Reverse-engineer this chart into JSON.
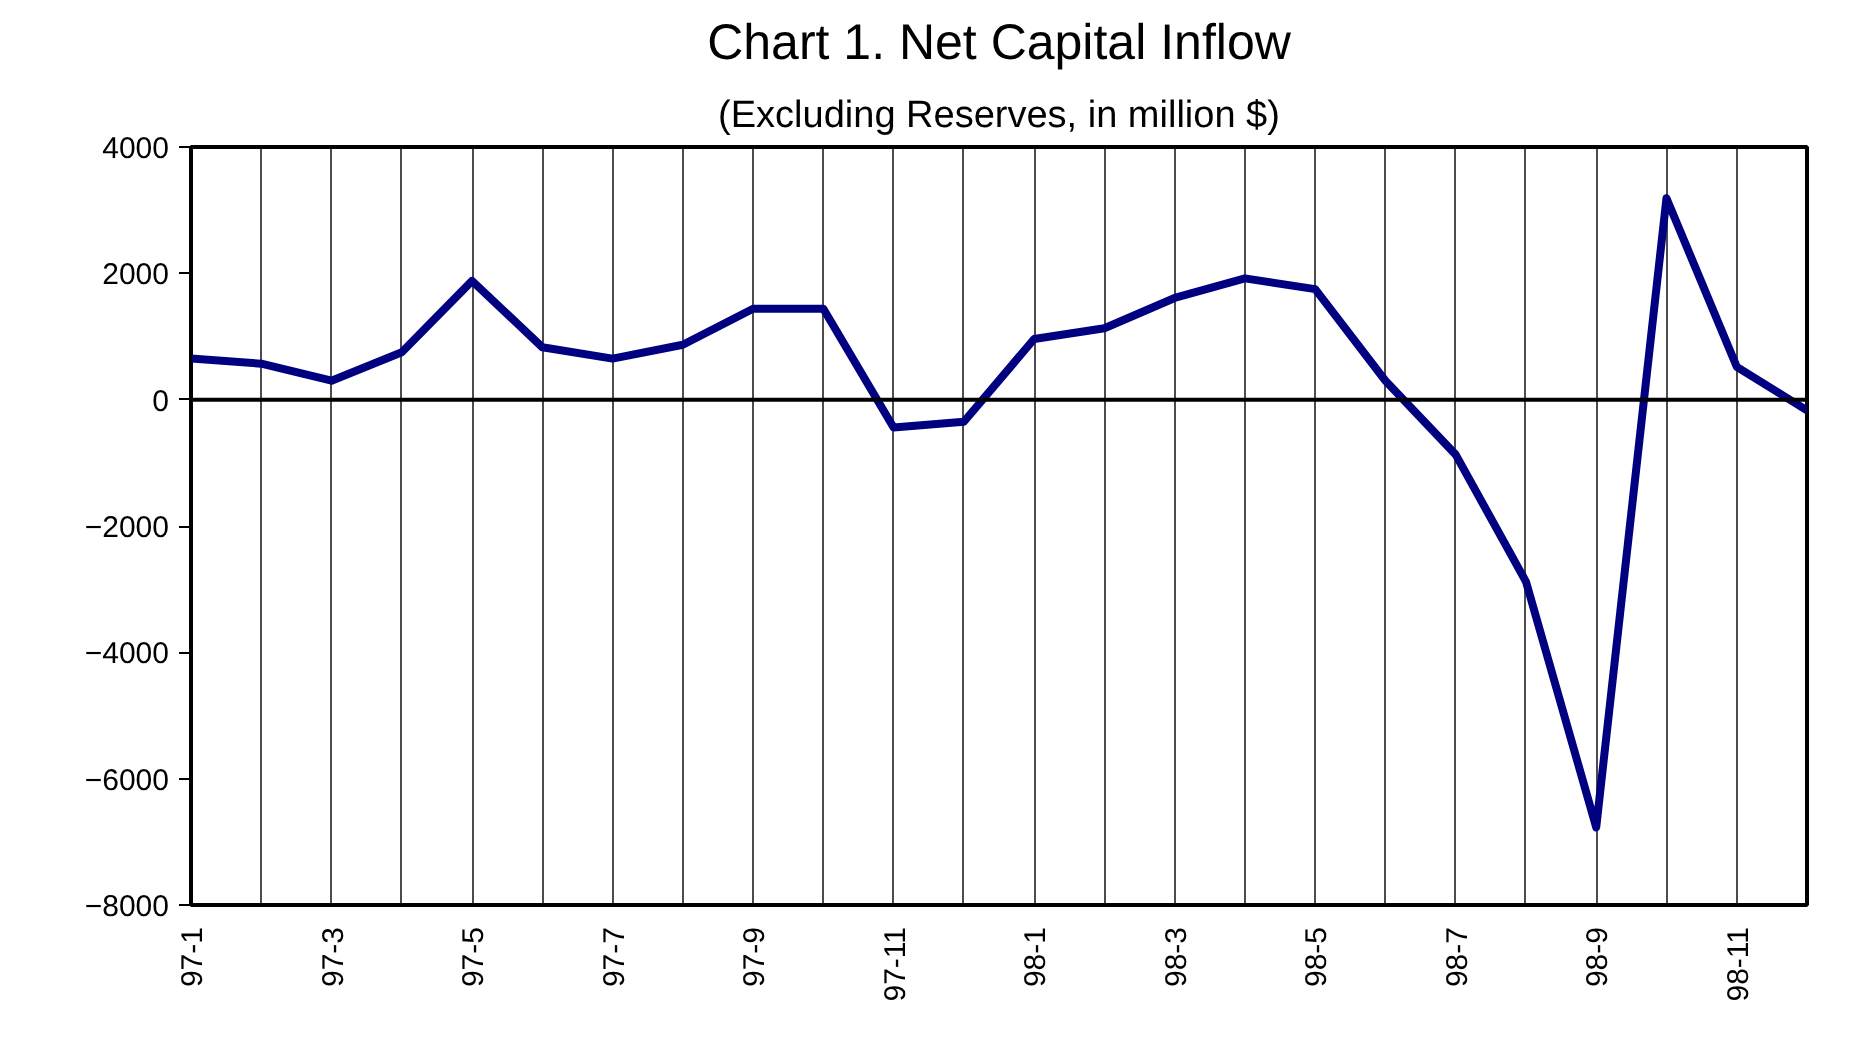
{
  "chart_data": {
    "type": "line",
    "title": "Chart 1. Net Capital Inflow",
    "subtitle": "(Excluding Reserves, in million $)",
    "categories": [
      "97-1",
      null,
      "97-3",
      null,
      "97-5",
      null,
      "97-7",
      null,
      "97-9",
      null,
      "97-11",
      null,
      "98-1",
      null,
      "98-3",
      null,
      "98-5",
      null,
      "98-7",
      null,
      "98-9",
      null,
      "98-11",
      null
    ],
    "series": [
      {
        "color": "#000080",
        "values": [
          650,
          570,
          300,
          750,
          1880,
          830,
          650,
          870,
          1440,
          1440,
          -440,
          -350,
          960,
          1130,
          1610,
          1920,
          1750,
          300,
          -870,
          -2880,
          -6770,
          3190,
          520,
          -170
        ]
      }
    ],
    "ylim": [
      -8000,
      4000
    ],
    "yticks": [
      -8000,
      -6000,
      -4000,
      -2000,
      0,
      2000,
      4000
    ],
    "grid": "x",
    "ref_lines": [
      {
        "axis": "y",
        "value": 0,
        "color": "#000000"
      }
    ]
  }
}
